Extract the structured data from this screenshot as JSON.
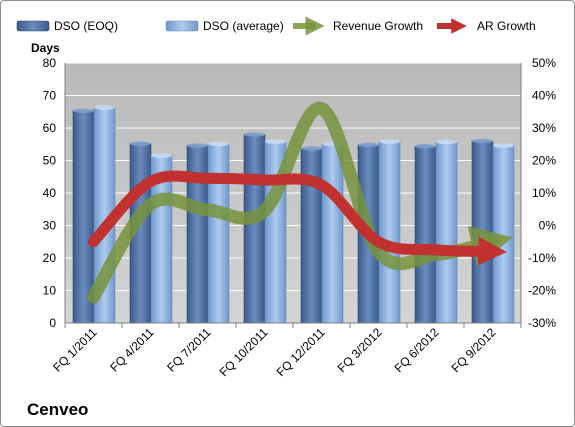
{
  "company_name": "Cenveo",
  "chart_data": {
    "type": "bar",
    "categories": [
      "FQ 1/2011",
      "FQ 4/2011",
      "FQ 7/2011",
      "FQ 10/2011",
      "FQ 12/2011",
      "FQ 3/2012",
      "FQ 6/2012",
      "FQ 9/2012"
    ],
    "series": [
      {
        "name": "DSO (EOQ)",
        "type": "bar",
        "axis": "left",
        "color": "#4f6f9f",
        "values": [
          65.3,
          55.2,
          54.6,
          58.0,
          53.7,
          54.8,
          54.4,
          56.0
        ]
      },
      {
        "name": "DSO (average)",
        "type": "bar",
        "axis": "left",
        "color": "#8fb4e3",
        "values": [
          66.3,
          51.5,
          55.1,
          55.8,
          55.1,
          55.8,
          55.7,
          54.6
        ]
      },
      {
        "name": "Revenue Growth",
        "type": "line",
        "axis": "right",
        "color": "#77933c",
        "values": [
          -22,
          6.5,
          4.8,
          4.5,
          36,
          -8,
          -9,
          -5
        ]
      },
      {
        "name": "AR Growth",
        "type": "line",
        "axis": "right",
        "color": "#c0312f",
        "values": [
          -5,
          13.5,
          14.5,
          14,
          12.5,
          -5,
          -7.5,
          -8
        ]
      }
    ],
    "ylabel": "Days",
    "ylim": [
      0,
      80
    ],
    "yticks": [
      "0",
      "10",
      "20",
      "30",
      "40",
      "50",
      "60",
      "70",
      "80"
    ],
    "y2lim": [
      -30,
      50
    ],
    "y2ticks": [
      "-30%",
      "-20%",
      "-10%",
      "0%",
      "10%",
      "20%",
      "30%",
      "40%",
      "50%"
    ],
    "legend_position": "top",
    "grid": true
  }
}
